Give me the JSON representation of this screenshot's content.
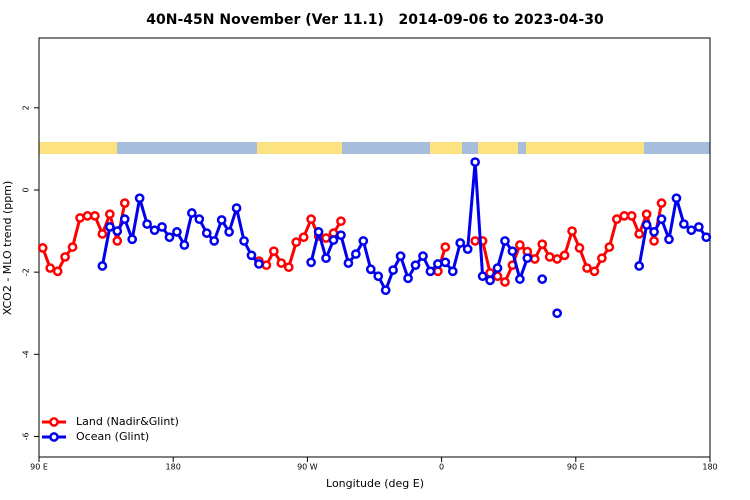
{
  "chart_data": {
    "type": "line",
    "title": "40N-45N November (Ver 11.1)   2014-09-06 to 2023-04-30",
    "x_label": "Longitude (deg E)",
    "y_label": "XCO2 - MLO trend (ppm)",
    "x": [
      92.5,
      97.5,
      102.5,
      107.5,
      112.5,
      117.5,
      122.5,
      127.5,
      132.5,
      137.5,
      142.5,
      147.5,
      152.5,
      157.5,
      162.5,
      167.5,
      172.5,
      177.5,
      182.5,
      187.5,
      192.5,
      197.5,
      202.5,
      207.5,
      212.5,
      217.5,
      222.5,
      227.5,
      232.5,
      237.5,
      242.5,
      247.5,
      252.5,
      257.5,
      262.5,
      267.5,
      272.5,
      277.5,
      282.5,
      287.5,
      292.5,
      297.5,
      302.5,
      307.5,
      312.5,
      317.5,
      322.5,
      327.5,
      332.5,
      337.5,
      342.5,
      347.5,
      352.5,
      357.5,
      362.5,
      367.5,
      372.5,
      377.5,
      382.5,
      387.5,
      392.5,
      397.5,
      402.5,
      407.5,
      412.5,
      417.5,
      422.5,
      427.5,
      432.5,
      437.5,
      442.5,
      447.5,
      452.5,
      457.5,
      462.5,
      467.5,
      472.5,
      477.5,
      482.5,
      487.5,
      492.5,
      497.5,
      502.5,
      507.5,
      512.5,
      517.5,
      522.5,
      527.5,
      532.5,
      537.5
    ],
    "series": [
      {
        "name": "Land (Nadir&Glint)",
        "color": "#ff0000",
        "values": [
          -1.41,
          -1.9,
          -1.98,
          -1.63,
          -1.39,
          -0.68,
          -0.63,
          -0.63,
          -1.07,
          -0.59,
          -1.24,
          -0.32,
          null,
          null,
          null,
          null,
          null,
          null,
          null,
          null,
          null,
          null,
          null,
          null,
          null,
          null,
          null,
          null,
          null,
          -1.73,
          -1.83,
          -1.49,
          -1.78,
          -1.88,
          -1.27,
          -1.15,
          -0.71,
          -1.12,
          -1.17,
          -1.05,
          -0.76,
          null,
          null,
          null,
          null,
          null,
          null,
          null,
          null,
          null,
          null,
          null,
          null,
          -1.98,
          -1.39,
          null,
          null,
          null,
          -1.24,
          -1.24,
          -2.02,
          -2.1,
          -2.24,
          -1.83,
          -1.34,
          -1.5,
          -1.68,
          -1.32,
          -1.63,
          -1.68,
          -1.59,
          -1.0,
          -1.41,
          -1.9,
          -1.98,
          -1.66,
          -1.39,
          -0.71,
          -0.63,
          -0.63,
          -1.07,
          -0.59,
          -1.24,
          -0.32,
          null,
          null,
          null,
          null,
          null,
          null
        ]
      },
      {
        "name": "Ocean (Glint)",
        "color": "#0000ee",
        "values": [
          null,
          null,
          null,
          null,
          null,
          null,
          null,
          null,
          -1.85,
          -0.9,
          -1.0,
          -0.71,
          -1.2,
          -0.2,
          -0.83,
          -0.98,
          -0.9,
          -1.15,
          -1.02,
          -1.34,
          -0.56,
          -0.71,
          -1.05,
          -1.24,
          -0.73,
          -1.02,
          -0.44,
          -1.24,
          -1.59,
          -1.8,
          null,
          null,
          null,
          null,
          null,
          null,
          -1.76,
          -1.02,
          -1.66,
          -1.22,
          -1.1,
          -1.78,
          -1.56,
          -1.24,
          -1.93,
          -2.1,
          -2.44,
          -1.95,
          -1.61,
          -2.15,
          -1.83,
          -1.61,
          -1.98,
          -1.8,
          -1.76,
          -1.98,
          -1.29,
          -1.44,
          0.68,
          -2.1,
          -2.2,
          -1.9,
          -1.24,
          -1.49,
          -2.17,
          -1.66,
          null,
          -2.17,
          null,
          -3.0,
          null,
          null,
          null,
          null,
          null,
          null,
          null,
          null,
          null,
          null,
          -1.85,
          -0.85,
          -1.02,
          -0.71,
          -1.2,
          -0.2,
          -0.83,
          -0.98,
          -0.9,
          -1.15
        ]
      }
    ],
    "xlim": [
      90,
      540
    ],
    "xticks": [
      {
        "value": 90,
        "label": "90 E"
      },
      180,
      {
        "value": 270,
        "label": "90 W"
      },
      {
        "value": 360,
        "label": "0"
      },
      {
        "value": 450,
        "label": "90 E"
      },
      {
        "value": 540,
        "label": "180"
      }
    ],
    "ylim": [
      -6.5,
      3.7
    ],
    "yticks": [
      -6,
      -4,
      -2,
      0,
      2
    ],
    "legend": "bottom-left"
  }
}
